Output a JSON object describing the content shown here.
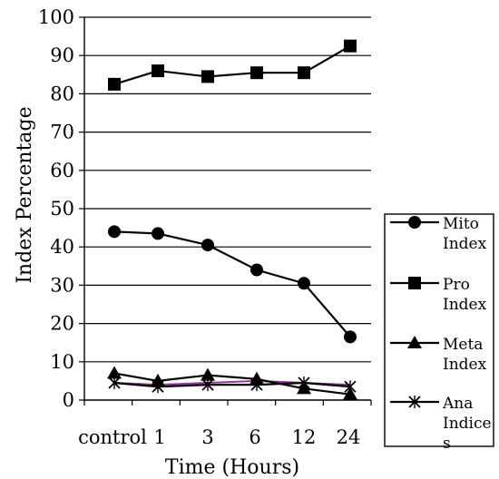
{
  "chart_data": {
    "type": "line",
    "categories": [
      "control",
      "1",
      "3",
      "6",
      "12",
      "24"
    ],
    "xlabel": "Time (Hours)",
    "ylabel": "Index Percentage",
    "ylim": [
      0,
      100
    ],
    "yticks": [
      "0",
      "10",
      "20",
      "30",
      "40",
      "50",
      "60",
      "70",
      "80",
      "90",
      "100"
    ],
    "grid": true,
    "legend_position": "right",
    "series": [
      {
        "name_lines": [
          "Mito",
          "Index"
        ],
        "marker": "circle",
        "color": "#000000",
        "values": [
          44,
          43.5,
          40.5,
          34,
          30.5,
          16.5
        ]
      },
      {
        "name_lines": [
          "Pro",
          "Index"
        ],
        "marker": "square",
        "color": "#000000",
        "values": [
          82.5,
          86,
          84.5,
          85.5,
          85.5,
          92.5
        ]
      },
      {
        "name_lines": [
          "Meta",
          "Index"
        ],
        "marker": "triangle",
        "color": "#000000",
        "values": [
          7,
          5,
          6.5,
          5.5,
          3,
          1.5
        ]
      },
      {
        "name_lines": [
          "Ana",
          "Indice",
          "s"
        ],
        "marker": "x",
        "color": "#000000",
        "values": [
          4.5,
          3.5,
          4,
          4,
          4.5,
          3.5
        ]
      },
      {
        "name_lines": [],
        "marker": "none",
        "color": "#9b2fa0",
        "values": [
          4.5,
          4,
          4.5,
          5,
          4.5,
          4
        ]
      }
    ]
  }
}
